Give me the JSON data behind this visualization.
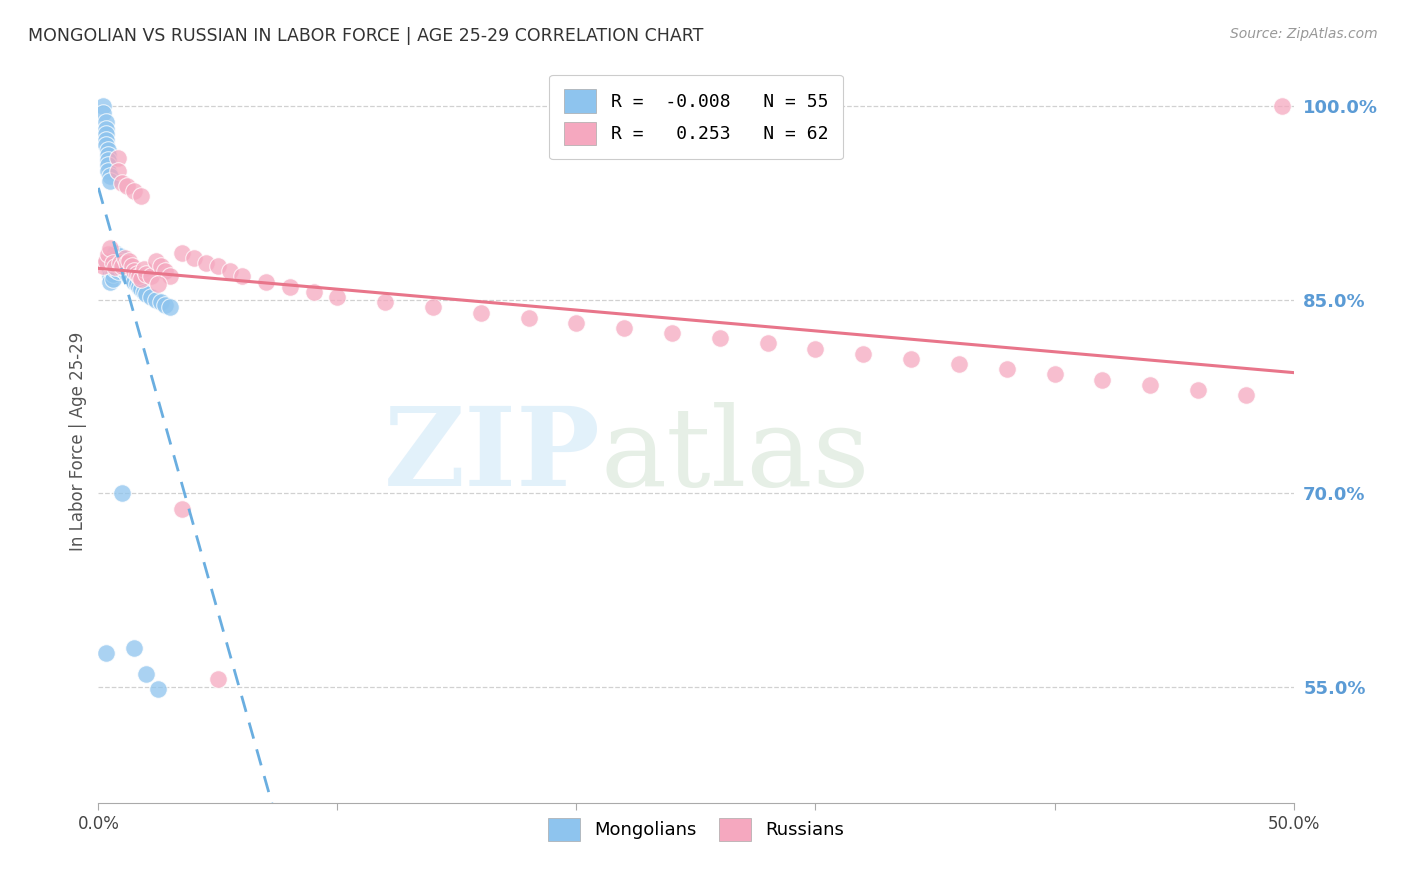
{
  "title": "MONGOLIAN VS RUSSIAN IN LABOR FORCE | AGE 25-29 CORRELATION CHART",
  "source": "Source: ZipAtlas.com",
  "ylabel": "In Labor Force | Age 25-29",
  "xlim": [
    0.0,
    0.5
  ],
  "ylim": [
    0.46,
    1.02
  ],
  "xtick_vals": [
    0.0,
    0.1,
    0.2,
    0.3,
    0.4,
    0.5
  ],
  "xtick_labels": [
    "0.0%",
    "",
    "",
    "",
    "",
    "50.0%"
  ],
  "ytick_vals": [
    0.55,
    0.7,
    0.85,
    1.0
  ],
  "ytick_labels": [
    "55.0%",
    "70.0%",
    "85.0%",
    "100.0%"
  ],
  "mongolian_color": "#8ec4ee",
  "russian_color": "#f5a8bf",
  "mongolian_R": -0.008,
  "mongolian_N": 55,
  "russian_R": 0.253,
  "russian_N": 62,
  "mongolian_line_color": "#6aaee0",
  "russian_line_color": "#e8758a",
  "background_color": "#ffffff",
  "grid_color": "#cccccc",
  "ytick_color": "#5b9bd5",
  "mon_x": [
    0.002,
    0.002,
    0.003,
    0.003,
    0.003,
    0.003,
    0.003,
    0.004,
    0.004,
    0.004,
    0.004,
    0.004,
    0.005,
    0.005,
    0.005,
    0.005,
    0.005,
    0.006,
    0.006,
    0.006,
    0.006,
    0.007,
    0.007,
    0.007,
    0.007,
    0.008,
    0.008,
    0.008,
    0.009,
    0.009,
    0.009,
    0.01,
    0.01,
    0.011,
    0.011,
    0.012,
    0.012,
    0.013,
    0.014,
    0.015,
    0.016,
    0.017,
    0.018,
    0.019,
    0.02,
    0.022,
    0.024,
    0.026,
    0.028,
    0.03,
    0.003,
    0.01,
    0.015,
    0.02,
    0.025
  ],
  "mon_y": [
    1.0,
    0.995,
    0.988,
    0.982,
    0.978,
    0.974,
    0.97,
    0.966,
    0.962,
    0.958,
    0.954,
    0.95,
    0.946,
    0.942,
    0.872,
    0.868,
    0.864,
    0.878,
    0.874,
    0.87,
    0.866,
    0.886,
    0.882,
    0.878,
    0.874,
    0.88,
    0.876,
    0.872,
    0.884,
    0.88,
    0.876,
    0.878,
    0.874,
    0.876,
    0.872,
    0.874,
    0.87,
    0.868,
    0.866,
    0.864,
    0.862,
    0.86,
    0.858,
    0.856,
    0.854,
    0.852,
    0.85,
    0.848,
    0.846,
    0.844,
    0.576,
    0.7,
    0.58,
    0.56,
    0.548
  ],
  "rus_x": [
    0.002,
    0.003,
    0.004,
    0.005,
    0.006,
    0.007,
    0.008,
    0.009,
    0.01,
    0.011,
    0.012,
    0.013,
    0.014,
    0.015,
    0.016,
    0.017,
    0.018,
    0.019,
    0.02,
    0.022,
    0.024,
    0.026,
    0.028,
    0.03,
    0.035,
    0.04,
    0.045,
    0.05,
    0.055,
    0.06,
    0.07,
    0.08,
    0.09,
    0.1,
    0.12,
    0.14,
    0.16,
    0.18,
    0.2,
    0.22,
    0.24,
    0.26,
    0.28,
    0.3,
    0.32,
    0.34,
    0.36,
    0.38,
    0.4,
    0.42,
    0.44,
    0.46,
    0.48,
    0.495,
    0.008,
    0.01,
    0.012,
    0.015,
    0.018,
    0.025,
    0.035,
    0.05
  ],
  "rus_y": [
    0.876,
    0.88,
    0.885,
    0.89,
    0.878,
    0.875,
    0.96,
    0.878,
    0.876,
    0.882,
    0.878,
    0.88,
    0.876,
    0.872,
    0.87,
    0.868,
    0.866,
    0.874,
    0.87,
    0.868,
    0.88,
    0.876,
    0.872,
    0.868,
    0.886,
    0.882,
    0.878,
    0.876,
    0.872,
    0.868,
    0.864,
    0.86,
    0.856,
    0.852,
    0.848,
    0.844,
    0.84,
    0.836,
    0.832,
    0.828,
    0.824,
    0.82,
    0.816,
    0.812,
    0.808,
    0.804,
    0.8,
    0.796,
    0.792,
    0.788,
    0.784,
    0.78,
    0.776,
    1.0,
    0.95,
    0.94,
    0.938,
    0.934,
    0.93,
    0.862,
    0.688,
    0.556
  ]
}
